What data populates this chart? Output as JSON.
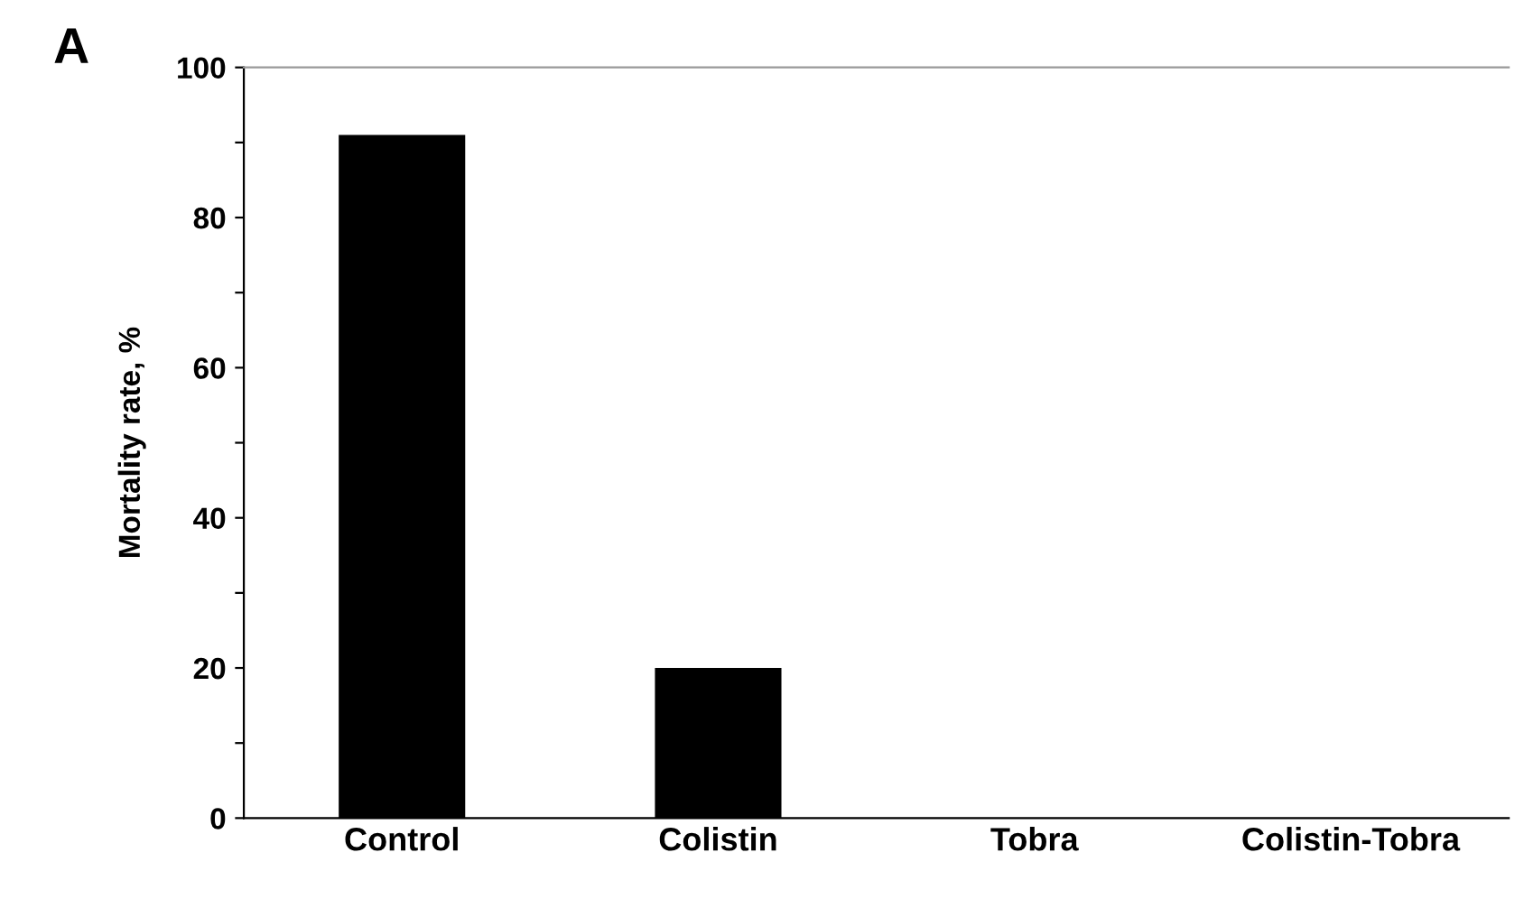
{
  "chart_data": {
    "type": "bar",
    "title": "A",
    "ylabel": "Mortality rate, %",
    "categories": [
      "Control",
      "Colistin",
      "Tobra",
      "Colistin-Tobra"
    ],
    "values": [
      91,
      20,
      0,
      0
    ],
    "color": "#000000",
    "ylim": [
      0,
      100
    ],
    "yticks": [
      0,
      {
        "value": 10,
        "label": null
      },
      20,
      {
        "value": 30,
        "label": null
      },
      40,
      {
        "value": 50,
        "label": null
      },
      60,
      {
        "value": 70,
        "label": null
      },
      80,
      {
        "value": 90,
        "label": null
      },
      100
    ],
    "grid": false
  }
}
